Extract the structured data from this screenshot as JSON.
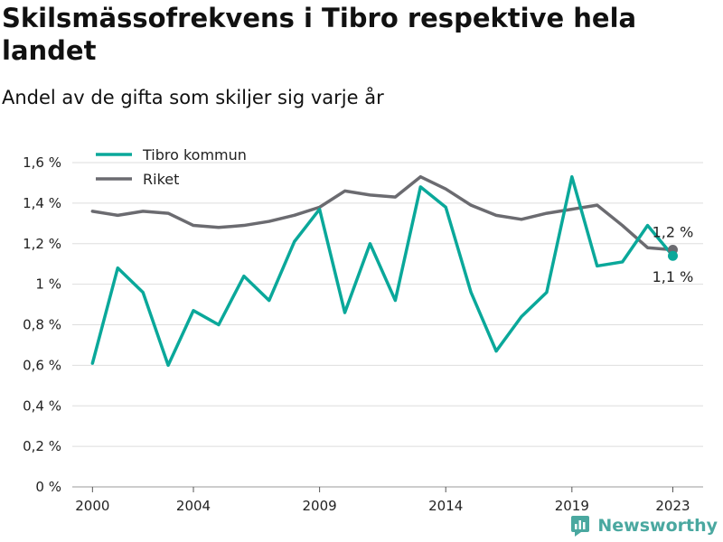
{
  "title": "Skilsmässofrekvens i Tibro respektive hela landet",
  "subtitle": "Andel av de gifta som skiljer sig varje år",
  "brand": {
    "text": "Newsworthy",
    "color": "#4aa8a0"
  },
  "chart_data": {
    "type": "line",
    "x": [
      2000,
      2001,
      2002,
      2003,
      2004,
      2005,
      2006,
      2007,
      2008,
      2009,
      2010,
      2011,
      2012,
      2013,
      2014,
      2015,
      2016,
      2017,
      2018,
      2019,
      2020,
      2021,
      2022,
      2023
    ],
    "x_ticks": [
      2000,
      2004,
      2009,
      2014,
      2019,
      2023
    ],
    "x_tick_labels": [
      "2000",
      "2004",
      "2009",
      "2014",
      "2019",
      "2023"
    ],
    "xlim": [
      1999.2,
      2024.2
    ],
    "ylim": [
      0,
      1.6
    ],
    "y_ticks": [
      0,
      0.2,
      0.4,
      0.6,
      0.8,
      1.0,
      1.2,
      1.4,
      1.6
    ],
    "y_tick_labels": [
      "0 %",
      "0,2 %",
      "0,4 %",
      "0,6 %",
      "0,8 %",
      "1 %",
      "1,2 %",
      "1,4 %",
      "1,6 %"
    ],
    "grid": true,
    "legend": "top-left",
    "series": [
      {
        "name": "Tibro kommun",
        "color": "#0aa89a",
        "values": [
          0.61,
          1.08,
          0.96,
          0.6,
          0.87,
          0.8,
          1.04,
          0.92,
          1.21,
          1.37,
          0.86,
          1.2,
          0.92,
          1.48,
          1.38,
          0.96,
          0.67,
          0.84,
          0.96,
          1.53,
          1.09,
          1.11,
          1.29,
          1.14
        ],
        "end_label": "1,1 %",
        "end_label_position": "below"
      },
      {
        "name": "Riket",
        "color": "#6b6b70",
        "values": [
          1.36,
          1.34,
          1.36,
          1.35,
          1.29,
          1.28,
          1.29,
          1.31,
          1.34,
          1.38,
          1.46,
          1.44,
          1.43,
          1.53,
          1.47,
          1.39,
          1.34,
          1.32,
          1.35,
          1.37,
          1.39,
          1.29,
          1.18,
          1.17
        ],
        "end_label": "1,2 %",
        "end_label_position": "above"
      }
    ]
  }
}
